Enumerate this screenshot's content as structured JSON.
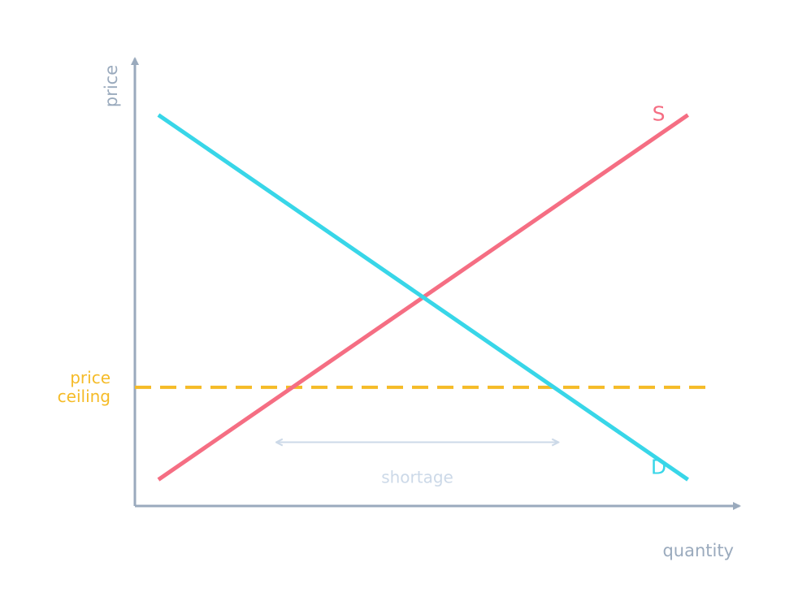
{
  "chart_data": {
    "type": "line",
    "xlabel": "quantity",
    "ylabel": "price",
    "xlim": [
      0,
      100
    ],
    "ylim": [
      0,
      100
    ],
    "grid": false,
    "ticks": false,
    "series": [
      {
        "name": "S",
        "color": "#f56e83",
        "x": [
          4,
          94
        ],
        "y": [
          6,
          89
        ]
      },
      {
        "name": "D",
        "color": "#38d6e8",
        "x": [
          4,
          94
        ],
        "y": [
          89,
          6
        ]
      }
    ],
    "price_ceiling": {
      "label_line1": "price",
      "label_line2": "ceiling",
      "value": 27,
      "x_range": [
        0,
        98
      ],
      "color": "#f5bb27"
    },
    "shortage": {
      "label": "shortage",
      "x_from": 24,
      "x_to": 72,
      "y": 14.5,
      "color": "#ccd9e8"
    },
    "colors": {
      "axis": "#9aaabd",
      "axis_text": "#9aaabd",
      "shortage_text": "#ccd9e8"
    }
  }
}
